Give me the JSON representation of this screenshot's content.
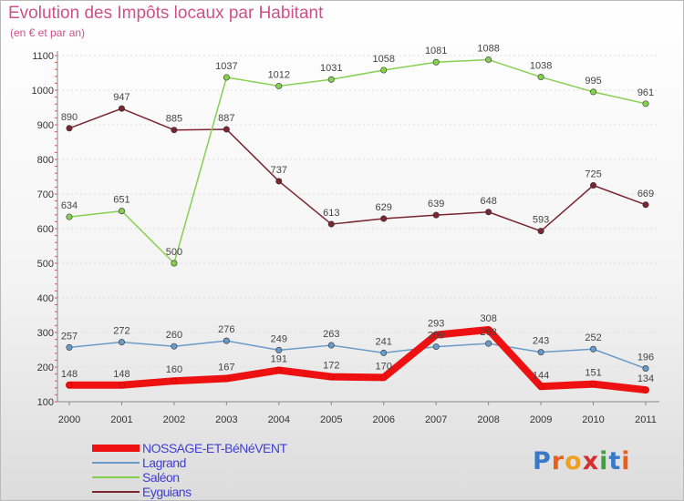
{
  "title": "Evolution des Impôts locaux par Habitant",
  "subtitle": "(en € et par an)",
  "logo": {
    "text": "Proxiti",
    "letters": [
      "P",
      "r",
      "o",
      "x",
      "i",
      "t",
      "i"
    ],
    "colors": [
      "#3a78c8",
      "#e8601c",
      "#f0a020",
      "#d03030",
      "#3fa040",
      "#3a78c8",
      "#e8601c"
    ]
  },
  "chart_data": {
    "type": "line",
    "title": "Evolution des Impôts locaux par Habitant",
    "xlabel": "",
    "ylabel": "(en € et par an)",
    "ylim": [
      100,
      1100
    ],
    "yticks": [
      100,
      200,
      300,
      400,
      500,
      600,
      700,
      800,
      900,
      1000,
      1100
    ],
    "categories": [
      "2000",
      "2001",
      "2002",
      "2003",
      "2004",
      "2005",
      "2006",
      "2007",
      "2008",
      "2009",
      "2010",
      "2011"
    ],
    "series": [
      {
        "name": "NOSSAGE-ET-BéNéVENT",
        "color": "#ee1111",
        "width": 8,
        "values": [
          148,
          148,
          160,
          167,
          191,
          172,
          170,
          293,
          308,
          144,
          151,
          134
        ],
        "labels": [
          "148",
          "148",
          "160",
          "167",
          "191",
          "172",
          "170",
          "293",
          "308",
          "144",
          "151",
          "134"
        ]
      },
      {
        "name": "Lagrand",
        "color": "#6a9bc8",
        "width": 1.5,
        "values": [
          257,
          272,
          260,
          276,
          249,
          263,
          241,
          259,
          268,
          243,
          252,
          196
        ],
        "labels": [
          "257",
          "272",
          "260",
          "276",
          "249",
          "263",
          "241",
          "259",
          "268",
          "243",
          "252",
          "196"
        ]
      },
      {
        "name": "Saléon",
        "color": "#86d050",
        "width": 1.5,
        "values": [
          634,
          651,
          500,
          1037,
          1012,
          1031,
          1058,
          1081,
          1088,
          1038,
          995,
          961
        ],
        "labels": [
          "634",
          "651",
          "500",
          "1037",
          "1012",
          "1031",
          "1058",
          "1081",
          "1088",
          "1038",
          "995",
          "961"
        ]
      },
      {
        "name": "Eyguians",
        "color": "#7a2530",
        "width": 1.5,
        "values": [
          890,
          947,
          885,
          887,
          737,
          613,
          629,
          639,
          648,
          593,
          725,
          669
        ],
        "labels": [
          "890",
          "947",
          "885",
          "887",
          "737",
          "613",
          "629",
          "639",
          "648",
          "593",
          "725",
          "669"
        ]
      }
    ]
  }
}
